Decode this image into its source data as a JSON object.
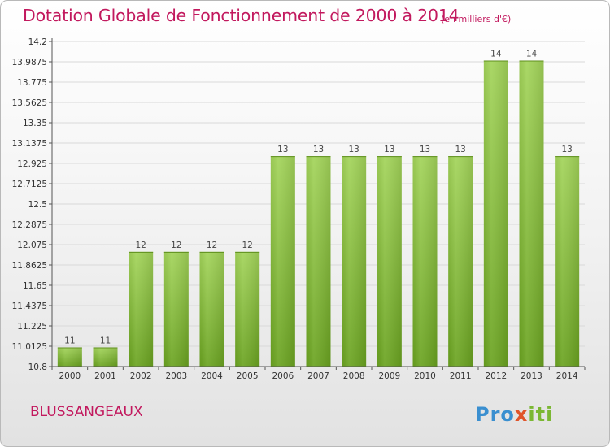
{
  "title": "Dotation Globale de Fonctionnement de 2000 à 2014",
  "unit_note": "(en milliers d'€)",
  "place": "BLUSSANGEAUX",
  "logo": {
    "prefix": "Pro",
    "x": "x",
    "suffix": "iti"
  },
  "colors": {
    "title": "#c2195e",
    "bar_light": "#a3d45a",
    "bar_dark": "#6aa320",
    "grid": "#d9d9d9"
  },
  "chart_data": {
    "type": "bar",
    "title": "Dotation Globale de Fonctionnement de 2000 à 2014",
    "xlabel": "",
    "ylabel": "",
    "categories": [
      "2000",
      "2001",
      "2002",
      "2003",
      "2004",
      "2005",
      "2006",
      "2007",
      "2008",
      "2009",
      "2010",
      "2011",
      "2012",
      "2013",
      "2014"
    ],
    "values": [
      11,
      11,
      12,
      12,
      12,
      12,
      13,
      13,
      13,
      13,
      13,
      13,
      14,
      14,
      13
    ],
    "value_labels": [
      "11",
      "11",
      "12",
      "12",
      "12",
      "12",
      "13",
      "13",
      "13",
      "13",
      "13",
      "13",
      "14",
      "14",
      "13"
    ],
    "plotted_values": [
      11.0,
      11.0,
      12.0,
      12.0,
      12.0,
      12.0,
      13.0,
      13.0,
      13.0,
      13.0,
      13.0,
      13.0,
      14.0,
      14.0,
      13.0
    ],
    "yticks": [
      "14.2",
      "13.9875",
      "13.775",
      "13.5625",
      "13.35",
      "13.1375",
      "12.925",
      "12.7125",
      "12.5",
      "12.2875",
      "12.075",
      "11.8625",
      "11.65",
      "11.4375",
      "11.225",
      "11.0125",
      "10.8"
    ],
    "ylim": [
      10.8,
      14.2
    ],
    "grid": true,
    "legend": "none"
  }
}
